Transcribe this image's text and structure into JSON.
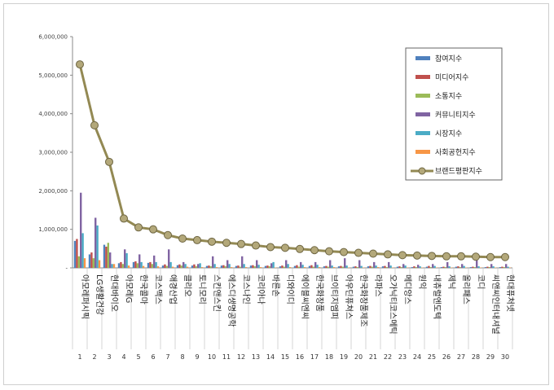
{
  "chart_data": {
    "type": "bar",
    "title": "",
    "xlabel": "",
    "ylabel": "",
    "ylim": [
      0,
      6000000
    ],
    "yticks": [
      0,
      1000000,
      2000000,
      3000000,
      4000000,
      5000000,
      6000000
    ],
    "ytick_labels": [
      "-",
      "1,000,000",
      "2,000,000",
      "3,000,000",
      "4,000,000",
      "5,000,000",
      "6,000,000"
    ],
    "grid": false,
    "legend_position": "top-right",
    "ranks": [
      "1",
      "2",
      "3",
      "4",
      "5",
      "6",
      "7",
      "8",
      "9",
      "10",
      "11",
      "12",
      "13",
      "14",
      "15",
      "16",
      "17",
      "18",
      "19",
      "20",
      "21",
      "22",
      "23",
      "24",
      "25",
      "26",
      "27",
      "28",
      "29",
      "30"
    ],
    "categories": [
      "아모레퍼시픽",
      "LG생활건강",
      "현대바이오",
      "아모레G",
      "한국콜마",
      "코스맥스",
      "애경산업",
      "클리오",
      "토니모리",
      "스킨앤스킨",
      "에스디생명공학",
      "코스나인",
      "코리아나",
      "바른손",
      "디와이디",
      "에이블씨엔씨",
      "한국화장품",
      "브이티지엠피",
      "아우딘퓨쳐스",
      "한국화장품제조",
      "라파스",
      "오가닉티코스메틱",
      "메디앙스",
      "원익",
      "내츄럴엔도텍",
      "제닉",
      "올리패스",
      "코디",
      "씨앤씨인터내셔널",
      "현대퓨처넷"
    ],
    "series": [
      {
        "name": "참여지수",
        "color": "#4f81bd",
        "values": [
          700000,
          350000,
          600000,
          120000,
          150000,
          130000,
          60000,
          70000,
          60000,
          50000,
          60000,
          50000,
          60000,
          50000,
          40000,
          50000,
          50000,
          40000,
          40000,
          30000,
          40000,
          40000,
          30000,
          20000,
          30000,
          20000,
          30000,
          20000,
          20000,
          20000
        ]
      },
      {
        "name": "미디어지수",
        "color": "#c0504d",
        "values": [
          750000,
          400000,
          550000,
          150000,
          170000,
          150000,
          90000,
          90000,
          90000,
          60000,
          70000,
          60000,
          70000,
          60000,
          60000,
          70000,
          70000,
          50000,
          50000,
          40000,
          50000,
          50000,
          40000,
          40000,
          50000,
          30000,
          40000,
          30000,
          30000,
          30000
        ]
      },
      {
        "name": "소통지수",
        "color": "#9bbb59",
        "values": [
          300000,
          250000,
          650000,
          100000,
          120000,
          100000,
          50000,
          60000,
          40000,
          40000,
          40000,
          30000,
          40000,
          40000,
          30000,
          30000,
          30000,
          30000,
          30000,
          20000,
          30000,
          20000,
          20000,
          20000,
          20000,
          20000,
          20000,
          20000,
          20000,
          20000
        ]
      },
      {
        "name": "커뮤니티지수",
        "color": "#8064a2",
        "values": [
          1950000,
          1300000,
          400000,
          480000,
          350000,
          320000,
          480000,
          150000,
          100000,
          300000,
          200000,
          300000,
          200000,
          120000,
          200000,
          150000,
          150000,
          200000,
          250000,
          200000,
          150000,
          150000,
          100000,
          80000,
          100000,
          150000,
          100000,
          200000,
          100000,
          100000
        ]
      },
      {
        "name": "시장지수",
        "color": "#4bacc6",
        "values": [
          900000,
          1100000,
          100000,
          380000,
          150000,
          150000,
          150000,
          100000,
          120000,
          100000,
          100000,
          100000,
          80000,
          150000,
          100000,
          80000,
          80000,
          60000,
          60000,
          50000,
          60000,
          60000,
          60000,
          40000,
          50000,
          40000,
          50000,
          40000,
          40000,
          30000
        ]
      },
      {
        "name": "사회공헌지수",
        "color": "#f79646",
        "values": [
          250000,
          200000,
          100000,
          60000,
          50000,
          40000,
          30000,
          30000,
          20000,
          20000,
          20000,
          20000,
          20000,
          10000,
          20000,
          20000,
          20000,
          20000,
          10000,
          10000,
          20000,
          10000,
          10000,
          10000,
          10000,
          10000,
          10000,
          10000,
          10000,
          10000
        ]
      }
    ],
    "line": {
      "name": "브랜드평판지수",
      "color": "#938953",
      "values": [
        5280000,
        3700000,
        2750000,
        1280000,
        1050000,
        1000000,
        850000,
        760000,
        720000,
        680000,
        650000,
        620000,
        580000,
        540000,
        520000,
        490000,
        460000,
        430000,
        410000,
        390000,
        370000,
        350000,
        330000,
        320000,
        310000,
        300000,
        300000,
        290000,
        280000,
        280000
      ]
    }
  }
}
